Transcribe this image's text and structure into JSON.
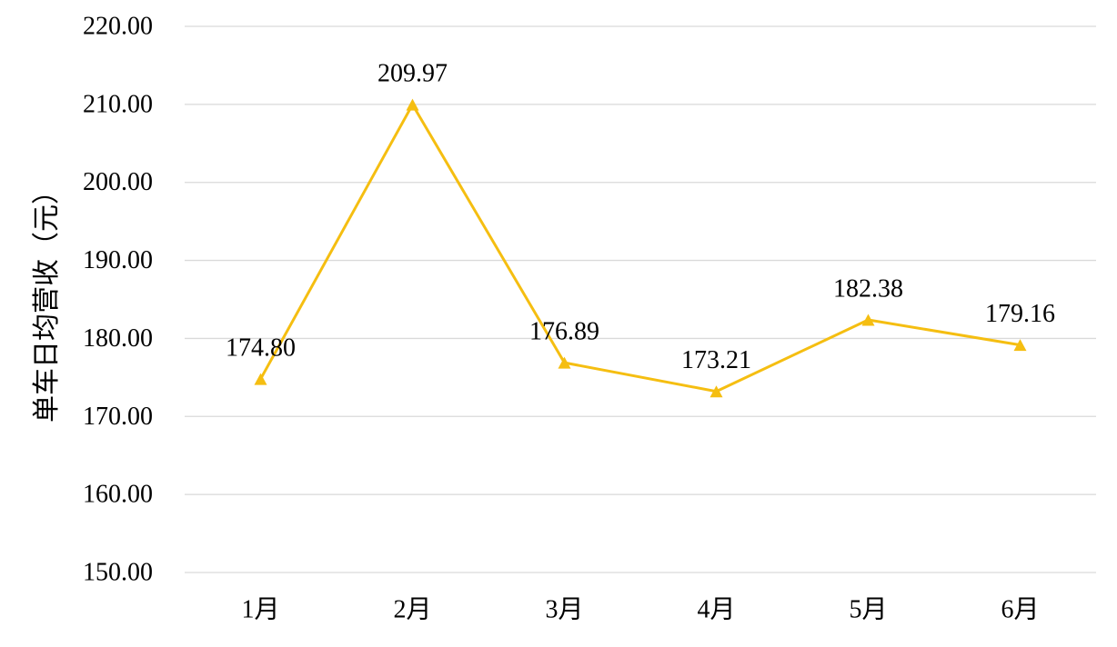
{
  "chart_data": {
    "type": "line",
    "title": "",
    "xlabel": "",
    "ylabel": "单车日均营收（元）",
    "categories": [
      "1月",
      "2月",
      "3月",
      "4月",
      "5月",
      "6月"
    ],
    "series": [
      {
        "values": [
          174.8,
          209.97,
          176.89,
          173.21,
          182.38,
          179.16
        ],
        "color": "#F5BE11",
        "marker": "triangle"
      }
    ],
    "data_labels": [
      "174.80",
      "209.97",
      "176.89",
      "173.21",
      "182.38",
      "179.16"
    ],
    "ylim": [
      150,
      220
    ],
    "yticks": [
      150,
      160,
      170,
      180,
      190,
      200,
      210,
      220
    ],
    "ytick_labels": [
      "150.00",
      "160.00",
      "170.00",
      "180.00",
      "190.00",
      "200.00",
      "210.00",
      "220.00"
    ],
    "grid": true,
    "gridline_color": "#D9D9D9",
    "legend": "none"
  }
}
